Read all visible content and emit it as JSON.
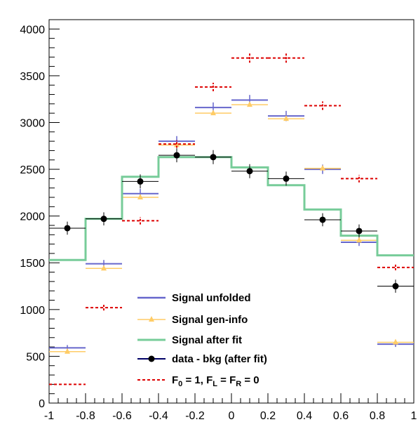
{
  "chart_data": {
    "type": "line",
    "subtype": "histogram-step",
    "title": "",
    "xlabel": "",
    "ylabel": "",
    "xlim": [
      -1,
      1
    ],
    "ylim": [
      0,
      4100
    ],
    "bin_edges": [
      -1,
      -0.8,
      -0.6,
      -0.4,
      -0.2,
      0,
      0.2,
      0.4,
      0.6,
      0.8,
      1
    ],
    "x_centers": [
      -0.9,
      -0.7,
      -0.5,
      -0.3,
      -0.1,
      0.1,
      0.3,
      0.5,
      0.7,
      0.9
    ],
    "x_ticks": [
      "-1",
      "-0.8",
      "-0.6",
      "-0.4",
      "-0.2",
      "0",
      "0.2",
      "0.4",
      "0.6",
      "0.8",
      "1"
    ],
    "y_ticks": [
      "0",
      "500",
      "1000",
      "1500",
      "2000",
      "2500",
      "3000",
      "3500",
      "4000"
    ],
    "grid": false,
    "legend_position": "bottom-center",
    "series": [
      {
        "name": "Signal unfolded",
        "style": "errorbar-hline",
        "color": "#6666cc",
        "values": [
          590,
          1490,
          2240,
          2800,
          3160,
          3240,
          3070,
          2500,
          1720,
          630
        ],
        "errors": [
          30,
          40,
          50,
          55,
          55,
          55,
          55,
          50,
          40,
          30
        ]
      },
      {
        "name": "Signal gen-info",
        "style": "triangle-hline",
        "color": "#ffcc66",
        "values": [
          550,
          1440,
          2200,
          2760,
          3100,
          3190,
          3040,
          2510,
          1740,
          650
        ],
        "errors": [
          0,
          0,
          0,
          0,
          0,
          0,
          0,
          0,
          0,
          0
        ]
      },
      {
        "name": "Signal after fit",
        "style": "step",
        "color": "#77cc99",
        "values": [
          1530,
          1970,
          2420,
          2630,
          2630,
          2520,
          2330,
          2070,
          1790,
          1580
        ],
        "errors": [
          0,
          0,
          0,
          0,
          0,
          0,
          0,
          0,
          0,
          0
        ]
      },
      {
        "name": "data - bkg (after fit)",
        "style": "marker-errorbar",
        "color": "#000000",
        "values": [
          1870,
          1970,
          2370,
          2650,
          2630,
          2480,
          2400,
          1960,
          1840,
          1250
        ],
        "errors": [
          70,
          70,
          75,
          75,
          75,
          75,
          75,
          70,
          70,
          70
        ]
      },
      {
        "name": "F_0 = 1, F_L = F_R = 0",
        "style": "dashed-hline",
        "color": "#dd0000",
        "values": [
          200,
          1020,
          1950,
          2770,
          3380,
          3690,
          3690,
          3180,
          2400,
          1450
        ],
        "errors": [
          0,
          30,
          40,
          40,
          45,
          50,
          50,
          45,
          40,
          30
        ]
      }
    ]
  },
  "legend": {
    "items": [
      {
        "label": "Signal unfolded"
      },
      {
        "label": "Signal gen-info"
      },
      {
        "label": "Signal after fit"
      },
      {
        "label": "data - bkg (after fit)"
      },
      {
        "label_parts": [
          "F",
          "0",
          " = 1, F",
          "L",
          " = F",
          "R",
          " = 0"
        ]
      }
    ]
  }
}
